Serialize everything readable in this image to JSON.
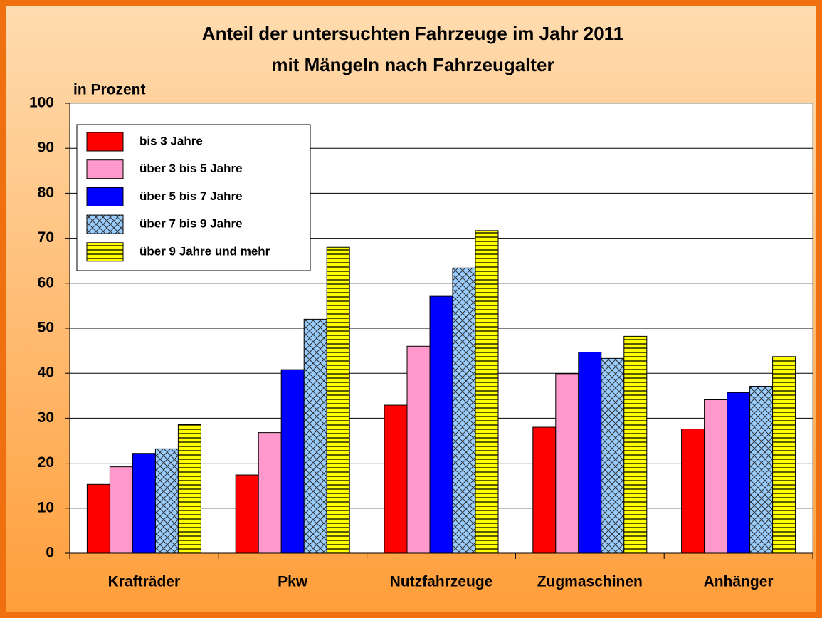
{
  "chart_data": {
    "type": "bar",
    "title": [
      "Anteil der untersuchten Fahrzeuge im Jahr 2011",
      "mit Mängeln nach Fahrzeugalter"
    ],
    "ylabel": "in Prozent",
    "categories": [
      "Krafträder",
      "Pkw",
      "Nutzfahrzeuge",
      "Zugmaschinen",
      "Anhänger"
    ],
    "series": [
      {
        "name": "bis 3 Jahre",
        "color": "#ff0000",
        "values": [
          15.3,
          17.4,
          32.9,
          28.0,
          27.6
        ]
      },
      {
        "name": "über 3 bis 5 Jahre",
        "color": "#ff99cc",
        "values": [
          19.2,
          26.8,
          46.0,
          39.9,
          34.1
        ]
      },
      {
        "name": "über 5 bis 7 Jahre",
        "color": "#0000ff",
        "values": [
          22.2,
          40.8,
          57.1,
          44.7,
          35.7
        ]
      },
      {
        "name": "über 7 bis 9 Jahre",
        "color": "#99ccff",
        "pattern": "crosshatch",
        "values": [
          23.2,
          52.0,
          63.4,
          43.3,
          37.1
        ]
      },
      {
        "name": "über 9 Jahre und mehr",
        "color": "#ffff00",
        "pattern": "horizontal",
        "values": [
          28.6,
          68.0,
          71.7,
          48.2,
          43.7
        ]
      }
    ],
    "ylim": [
      0,
      100
    ],
    "yticks": [
      0,
      10,
      20,
      30,
      40,
      50,
      60,
      70,
      80,
      90,
      100
    ],
    "grid": true,
    "legend": "upper left"
  }
}
